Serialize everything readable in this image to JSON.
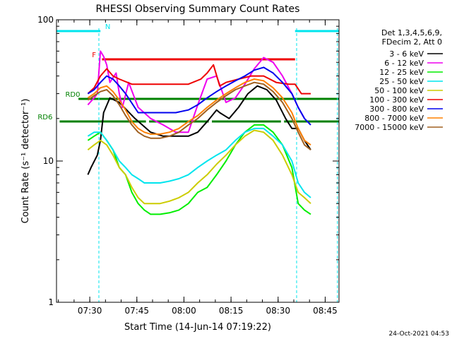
{
  "chart_data": {
    "type": "line",
    "title": "RHESSI Observing Summary Count Rates",
    "xlabel": "Start Time (14-Jun-14 07:19:22)",
    "ylabel": "Count Rate (s⁻¹ detector⁻¹)",
    "yscale": "log",
    "ylim": [
      1,
      100
    ],
    "xlim_minutes": [
      0,
      90
    ],
    "x_ticks": [
      {
        "label": "07:30",
        "minute": 10.6
      },
      {
        "label": "07:45",
        "minute": 25.6
      },
      {
        "label": "08:00",
        "minute": 40.6
      },
      {
        "label": "08:15",
        "minute": 55.6
      },
      {
        "label": "08:30",
        "minute": 70.6
      },
      {
        "label": "08:45",
        "minute": 85.6
      }
    ],
    "y_ticks": [
      {
        "label": "1",
        "value": 1
      },
      {
        "label": "10",
        "value": 10
      },
      {
        "label": "100",
        "value": 100
      }
    ],
    "legend_header": [
      "Det 1,3,4,5,6,9,",
      "FDecim 2, Att 0"
    ],
    "legend_position": "right",
    "footer_date": "24-Oct-2021 04:53",
    "flags": [
      {
        "label": "N",
        "color": "#00e5ee",
        "y": 96,
        "segments": [
          [
            0,
            14
          ],
          [
            76,
            90
          ]
        ]
      },
      {
        "label": "F",
        "color": "#ee0000",
        "y": 86,
        "segments": [
          [
            14.5,
            76
          ]
        ]
      },
      {
        "label": "RD0",
        "color": "#008000",
        "y": 72,
        "segments": [
          [
            7,
            90
          ]
        ]
      },
      {
        "label": "RD6",
        "color": "#008000",
        "y": 64,
        "segments": [
          [
            1,
            28.5
          ],
          [
            29.5,
            48.5
          ],
          [
            49.5,
            71.5
          ],
          [
            72.5,
            90
          ]
        ]
      }
    ],
    "vlines_minutes": [
      13.5,
      76.5,
      89.5
    ],
    "series": [
      {
        "name": "3 - 6 keV",
        "color": "#000000",
        "x": [
          10,
          11,
          13,
          14,
          15,
          17,
          20,
          25,
          30,
          34,
          38,
          42,
          45,
          48,
          51,
          52,
          55,
          58,
          61,
          64,
          67,
          70,
          73,
          75,
          77,
          79,
          81
        ],
        "y": [
          8,
          9,
          11,
          14,
          22,
          28,
          26,
          20,
          16,
          15,
          15,
          15,
          16,
          19,
          23,
          22,
          20,
          24,
          30,
          34,
          32,
          27,
          20,
          17,
          17,
          14,
          12
        ]
      },
      {
        "name": "6 - 12 keV",
        "color": "#ee00ee",
        "x": [
          10,
          12,
          13,
          14,
          15,
          16,
          17,
          19,
          20,
          21,
          23,
          26,
          30,
          34,
          38,
          42,
          45,
          48,
          51,
          54,
          57,
          60,
          63,
          66,
          69,
          72,
          75,
          77,
          79
        ],
        "y": [
          25,
          28,
          30,
          60,
          55,
          48,
          36,
          42,
          30,
          24,
          36,
          24,
          20,
          18,
          16,
          16,
          25,
          38,
          40,
          26,
          28,
          35,
          45,
          54,
          50,
          40,
          30,
          24,
          20
        ]
      },
      {
        "name": "12 - 25 keV",
        "color": "#00ee00",
        "x": [
          10,
          12,
          14,
          16,
          18,
          20,
          22,
          24,
          26,
          28,
          30,
          33,
          36,
          39,
          42,
          45,
          48,
          51,
          54,
          57,
          60,
          63,
          66,
          69,
          72,
          75,
          77,
          79,
          81
        ],
        "y": [
          14,
          15,
          16,
          14,
          12,
          9,
          8,
          6,
          5,
          4.5,
          4.2,
          4.2,
          4.3,
          4.5,
          5,
          6,
          6.5,
          8,
          10,
          13,
          16,
          18,
          18,
          16,
          13,
          9,
          5,
          4.5,
          4.2
        ]
      },
      {
        "name": "25 - 50 keV",
        "color": "#00e5ee",
        "x": [
          10,
          12,
          14,
          16,
          18,
          20,
          22,
          24,
          26,
          28,
          30,
          33,
          36,
          39,
          42,
          45,
          48,
          51,
          54,
          57,
          60,
          63,
          66,
          69,
          72,
          75,
          77,
          79,
          81
        ],
        "y": [
          15,
          16,
          16,
          14,
          12,
          10,
          9,
          8,
          7.5,
          7,
          7,
          7,
          7.2,
          7.5,
          8,
          9,
          10,
          11,
          12,
          14,
          16,
          17,
          17,
          15,
          13,
          10,
          7,
          6,
          5.5
        ]
      },
      {
        "name": "50 - 100 keV",
        "color": "#cccc00",
        "x": [
          10,
          12,
          14,
          16,
          18,
          20,
          22,
          24,
          26,
          28,
          30,
          33,
          36,
          39,
          42,
          45,
          48,
          51,
          54,
          57,
          60,
          63,
          66,
          69,
          72,
          75,
          77,
          79,
          81
        ],
        "y": [
          12,
          13,
          14,
          13,
          11,
          9,
          8,
          6.5,
          5.5,
          5,
          5,
          5,
          5.2,
          5.5,
          6,
          7,
          8,
          9.5,
          11,
          13,
          15,
          16.5,
          16,
          14,
          11,
          8,
          6,
          5.5,
          5
        ]
      },
      {
        "name": "100 - 300 keV",
        "color": "#ee0000",
        "x": [
          10,
          12,
          14,
          16,
          18,
          20,
          24,
          28,
          30,
          34,
          38,
          42,
          46,
          48,
          50,
          52,
          54,
          58,
          62,
          66,
          70,
          74,
          76,
          78,
          80,
          81
        ],
        "y": [
          30,
          33,
          40,
          45,
          40,
          38,
          35,
          35,
          35,
          35,
          35,
          35,
          38,
          42,
          48,
          34,
          36,
          38,
          40,
          40,
          36,
          35,
          35,
          30,
          30,
          30
        ]
      },
      {
        "name": "300 - 800 keV",
        "color": "#0000ee",
        "x": [
          10,
          12,
          14,
          16,
          18,
          20,
          22,
          26,
          30,
          34,
          38,
          42,
          45,
          48,
          51,
          54,
          57,
          60,
          63,
          66,
          69,
          72,
          75,
          77,
          79,
          81
        ],
        "y": [
          30,
          32,
          36,
          40,
          38,
          34,
          30,
          22,
          22,
          22,
          22,
          23,
          25,
          28,
          31,
          34,
          37,
          40,
          44,
          46,
          42,
          36,
          30,
          24,
          20,
          18
        ]
      },
      {
        "name": "800 - 7000 keV",
        "color": "#ff8000",
        "x": [
          10,
          12,
          14,
          16,
          18,
          20,
          22,
          24,
          26,
          28,
          30,
          33,
          36,
          39,
          42,
          45,
          48,
          51,
          54,
          57,
          60,
          63,
          66,
          69,
          72,
          75,
          77,
          79,
          81
        ],
        "y": [
          28,
          30,
          33,
          34,
          31,
          27,
          23,
          19,
          17,
          16,
          15.5,
          15.5,
          16,
          17,
          19,
          21,
          24,
          27,
          30,
          33,
          36,
          38,
          37,
          33,
          28,
          22,
          17,
          14,
          13
        ]
      },
      {
        "name": "7000 - 15000 keV",
        "color": "#a06020",
        "x": [
          10,
          12,
          14,
          16,
          18,
          20,
          22,
          24,
          26,
          28,
          30,
          33,
          36,
          39,
          42,
          45,
          48,
          51,
          54,
          57,
          60,
          63,
          66,
          69,
          72,
          75,
          77,
          79,
          81
        ],
        "y": [
          27,
          29,
          31,
          32,
          29,
          25,
          21,
          18,
          16,
          15,
          14.5,
          14.5,
          15,
          16,
          18,
          20,
          23,
          26,
          29,
          32,
          34,
          36,
          35,
          31,
          26,
          20,
          16,
          13,
          12
        ]
      }
    ]
  }
}
